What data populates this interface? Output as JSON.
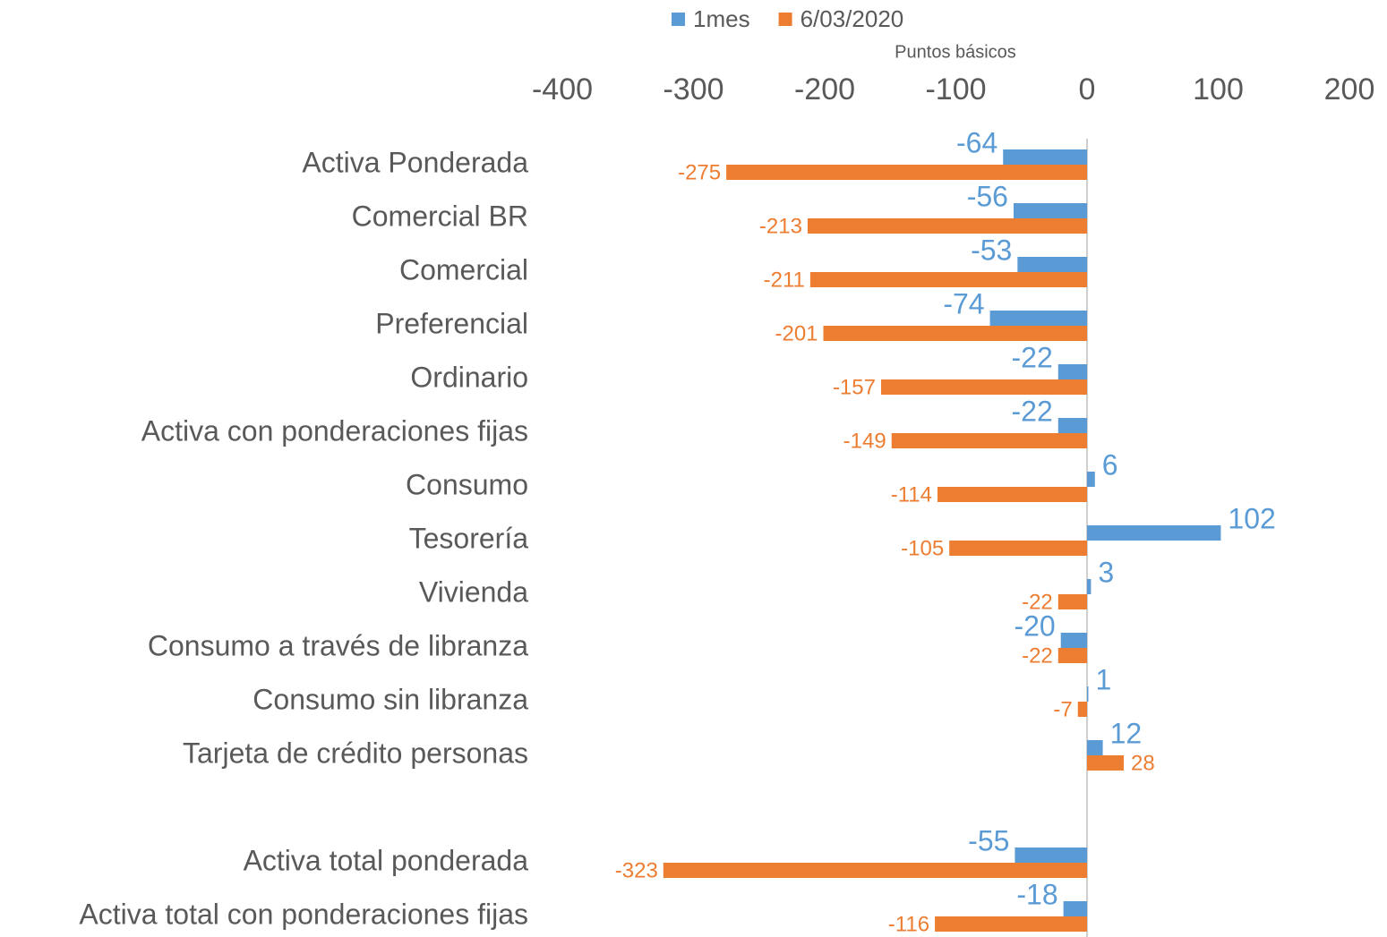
{
  "chart_data": {
    "type": "hbar",
    "axis_title": "Puntos básicos",
    "categories": [
      "Activa Ponderada",
      "Comercial BR",
      "Comercial",
      "Preferencial",
      "Ordinario",
      "Activa con ponderaciones fijas",
      "Consumo",
      "Tesorería",
      "Vivienda",
      "Consumo a través de libranza",
      "Consumo sin libranza",
      "Tarjeta de crédito personas",
      null,
      "Activa total ponderada",
      "Activa total con ponderaciones fijas"
    ],
    "series": [
      {
        "name": "1mes",
        "color": "#5b9bd5",
        "values": [
          -64,
          -56,
          -53,
          -74,
          -22,
          -22,
          6,
          102,
          3,
          -20,
          1,
          12,
          null,
          -55,
          -18
        ]
      },
      {
        "name": "6/03/2020",
        "color": "#ed7d31",
        "values": [
          -275,
          -213,
          -211,
          -201,
          -157,
          -149,
          -114,
          -105,
          -22,
          -22,
          -7,
          28,
          null,
          -323,
          -116
        ]
      }
    ],
    "xlim": [
      -400,
      200
    ],
    "xticks": [
      -400,
      -300,
      -200,
      -100,
      0,
      100,
      200
    ],
    "legend": "top",
    "grid": false
  }
}
